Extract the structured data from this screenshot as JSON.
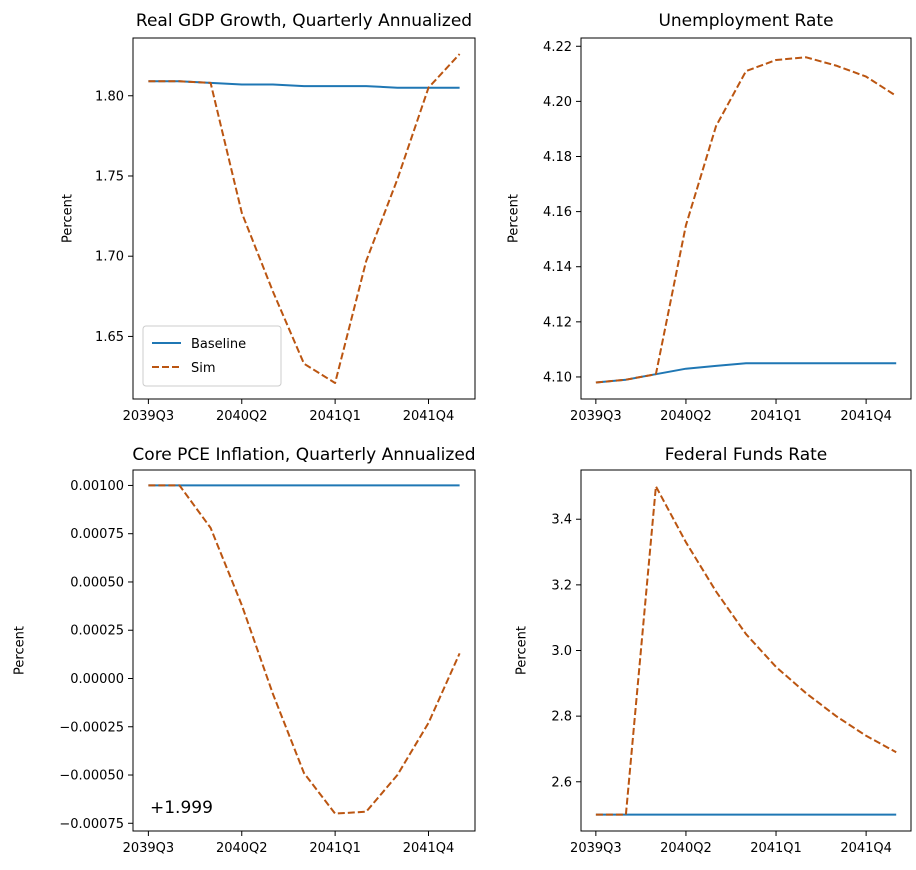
{
  "colors": {
    "baseline": "#1f77b4",
    "sim": "#bb5511"
  },
  "chart_data": [
    {
      "id": "gdp",
      "type": "line",
      "title": "Real GDP Growth, Quarterly Annualized",
      "ylabel": "Percent",
      "x": [
        "2039Q3",
        "2039Q4",
        "2040Q1",
        "2040Q2",
        "2040Q3",
        "2040Q4",
        "2041Q1",
        "2041Q2",
        "2041Q3",
        "2041Q4",
        "2042Q1"
      ],
      "xticks": [
        "2039Q3",
        "2040Q2",
        "2041Q1",
        "2041Q4"
      ],
      "yticks": [
        "1.65",
        "1.70",
        "1.75",
        "1.80"
      ],
      "ylim": [
        1.611,
        1.836
      ],
      "legend": {
        "position": "lower-left",
        "entries": [
          "Baseline",
          "Sim"
        ]
      },
      "series": [
        {
          "name": "Baseline",
          "style": "solid",
          "values": [
            1.809,
            1.809,
            1.808,
            1.807,
            1.807,
            1.806,
            1.806,
            1.806,
            1.805,
            1.805,
            1.805
          ]
        },
        {
          "name": "Sim",
          "style": "dashed",
          "values": [
            1.809,
            1.809,
            1.808,
            1.727,
            1.678,
            1.633,
            1.621,
            1.697,
            1.748,
            1.805,
            1.826
          ]
        }
      ]
    },
    {
      "id": "unemployment",
      "type": "line",
      "title": "Unemployment Rate",
      "ylabel": "Percent",
      "x": [
        "2039Q3",
        "2039Q4",
        "2040Q1",
        "2040Q2",
        "2040Q3",
        "2040Q4",
        "2041Q1",
        "2041Q2",
        "2041Q3",
        "2041Q4",
        "2042Q1"
      ],
      "xticks": [
        "2039Q3",
        "2040Q2",
        "2041Q1",
        "2041Q4"
      ],
      "yticks": [
        "4.10",
        "4.12",
        "4.14",
        "4.16",
        "4.18",
        "4.20",
        "4.22"
      ],
      "ylim": [
        4.092,
        4.223
      ],
      "series": [
        {
          "name": "Baseline",
          "style": "solid",
          "values": [
            4.098,
            4.099,
            4.101,
            4.103,
            4.104,
            4.105,
            4.105,
            4.105,
            4.105,
            4.105,
            4.105
          ]
        },
        {
          "name": "Sim",
          "style": "dashed",
          "values": [
            4.098,
            4.099,
            4.101,
            4.155,
            4.191,
            4.211,
            4.215,
            4.216,
            4.213,
            4.209,
            4.202
          ]
        }
      ]
    },
    {
      "id": "core_pce",
      "type": "line",
      "title": "Core PCE Inflation, Quarterly Annualized",
      "ylabel": "Percent",
      "offset_text": "+1.999",
      "x": [
        "2039Q3",
        "2039Q4",
        "2040Q1",
        "2040Q2",
        "2040Q3",
        "2040Q4",
        "2041Q1",
        "2041Q2",
        "2041Q3",
        "2041Q4",
        "2042Q1"
      ],
      "xticks": [
        "2039Q3",
        "2040Q2",
        "2041Q1",
        "2041Q4"
      ],
      "yticks": [
        "−0.00075",
        "−0.00050",
        "−0.00025",
        "0.00000",
        "0.00025",
        "0.00050",
        "0.00075",
        "0.00100"
      ],
      "ylim": [
        -0.00079,
        0.00108
      ],
      "series": [
        {
          "name": "Baseline",
          "style": "solid",
          "values": [
            0.001,
            0.001,
            0.001,
            0.001,
            0.001,
            0.001,
            0.001,
            0.001,
            0.001,
            0.001,
            0.001
          ]
        },
        {
          "name": "Sim",
          "style": "dashed",
          "values": [
            0.001,
            0.001,
            0.00078,
            0.00038,
            -8e-05,
            -0.00049,
            -0.0007,
            -0.00069,
            -0.0005,
            -0.00023,
            0.00013
          ]
        }
      ]
    },
    {
      "id": "fed_funds",
      "type": "line",
      "title": "Federal Funds Rate",
      "ylabel": "Percent",
      "x": [
        "2039Q3",
        "2039Q4",
        "2040Q1",
        "2040Q2",
        "2040Q3",
        "2040Q4",
        "2041Q1",
        "2041Q2",
        "2041Q3",
        "2041Q4",
        "2042Q1"
      ],
      "xticks": [
        "2039Q3",
        "2040Q2",
        "2041Q1",
        "2041Q4"
      ],
      "yticks": [
        "2.6",
        "2.8",
        "3.0",
        "3.2",
        "3.4"
      ],
      "ylim": [
        2.45,
        3.55
      ],
      "series": [
        {
          "name": "Baseline",
          "style": "solid",
          "values": [
            2.5,
            2.5,
            2.5,
            2.5,
            2.5,
            2.5,
            2.5,
            2.5,
            2.5,
            2.5,
            2.5
          ]
        },
        {
          "name": "Sim",
          "style": "dashed",
          "values": [
            2.5,
            2.5,
            3.5,
            3.33,
            3.18,
            3.05,
            2.95,
            2.87,
            2.8,
            2.74,
            2.69
          ]
        }
      ]
    }
  ]
}
